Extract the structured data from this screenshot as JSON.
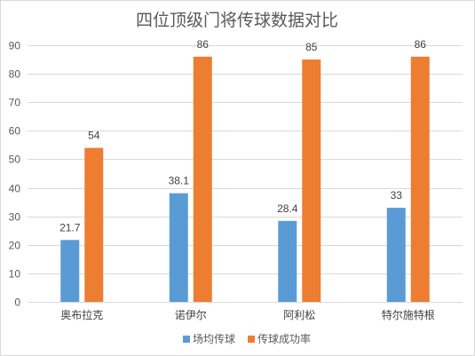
{
  "chart_data": {
    "type": "bar",
    "title": "四位顶级门将传球数据对比",
    "categories": [
      "奥布拉克",
      "诺伊尔",
      "阿利松",
      "特尔施特根"
    ],
    "series": [
      {
        "name": "场均传球",
        "values": [
          21.7,
          38.1,
          28.4,
          33
        ],
        "color": "#5b9bd5"
      },
      {
        "name": "传球成功率",
        "values": [
          54,
          86,
          85,
          86
        ],
        "color": "#ed7d31"
      }
    ],
    "ylim": [
      0,
      90
    ],
    "yticks": [
      0,
      10,
      20,
      30,
      40,
      50,
      60,
      70,
      80,
      90
    ],
    "grid": true,
    "legend": "bottom"
  }
}
